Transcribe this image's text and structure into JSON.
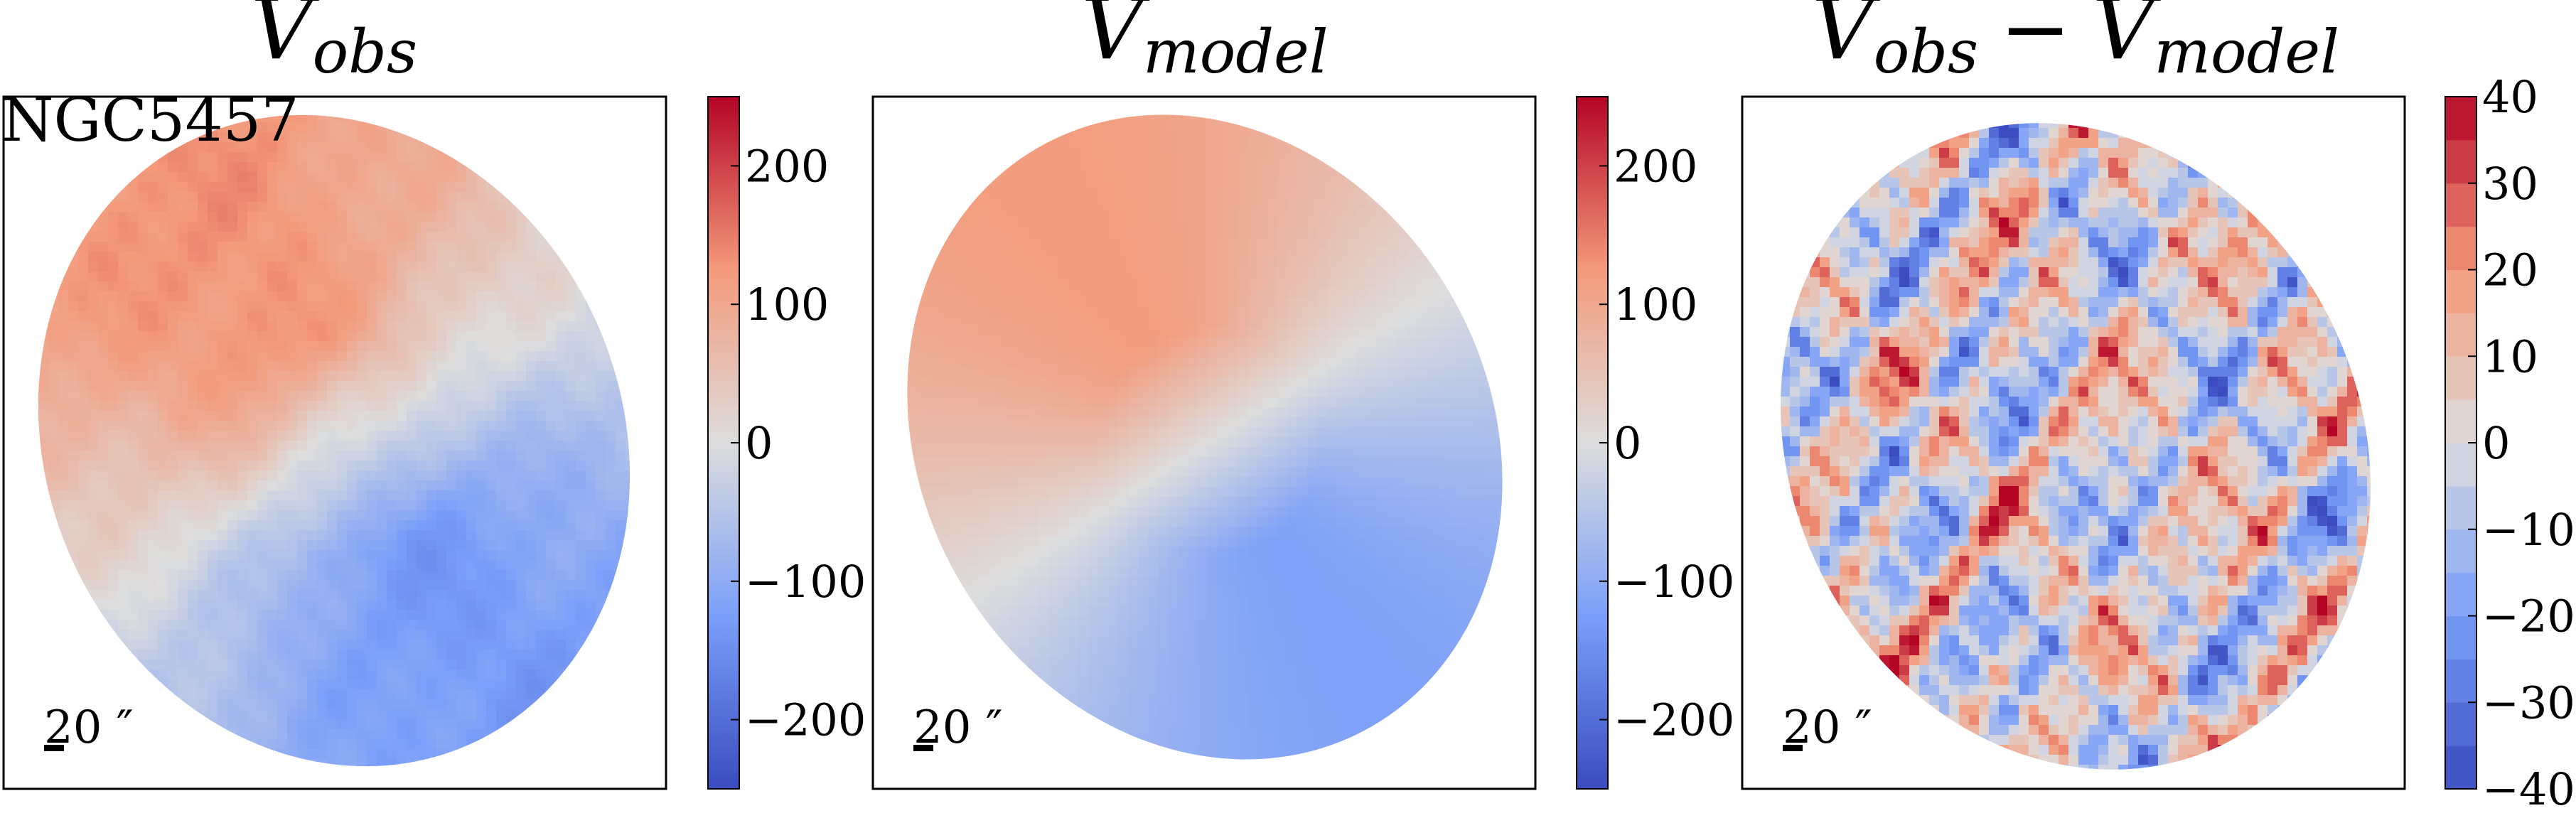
{
  "galaxy_label": "NGC5457",
  "scalebar_label": "20 ″",
  "colors": {
    "neg_extreme": "#3a4cc0",
    "neg": "#7b9ff9",
    "neutral": "#dddddd",
    "pos": "#f49a7b",
    "pos_extreme": "#b40426"
  },
  "chart_data": [
    {
      "type": "heatmap",
      "title_main": "V",
      "title_sub": "obs",
      "colorbar": {
        "range": [
          -250,
          250
        ],
        "ticks": [
          -200,
          -100,
          0,
          100,
          200
        ],
        "tick_labels": [
          "−200",
          "−100",
          "0",
          "100",
          "200"
        ],
        "discrete": false
      },
      "field": {
        "kinematic_angle_deg": 57,
        "amplitude": 130,
        "noise": 12
      }
    },
    {
      "type": "heatmap",
      "title_main": "V",
      "title_sub": "model",
      "colorbar": {
        "range": [
          -250,
          250
        ],
        "ticks": [
          -200,
          -100,
          0,
          100,
          200
        ],
        "tick_labels": [
          "−200",
          "−100",
          "0",
          "100",
          "200"
        ],
        "discrete": false
      },
      "field": {
        "kinematic_angle_deg": 57,
        "amplitude": 120,
        "noise": 0
      }
    },
    {
      "type": "heatmap",
      "title_main": "V",
      "title_sub": "obs",
      "title_minus": "−",
      "title_main2": "V",
      "title_sub2": "model",
      "colorbar": {
        "range": [
          -40,
          40
        ],
        "ticks": [
          -40,
          -30,
          -20,
          -10,
          0,
          10,
          20,
          30,
          40
        ],
        "tick_labels": [
          "−40",
          "−30",
          "−20",
          "−10",
          "0",
          "10",
          "20",
          "30",
          "40"
        ],
        "discrete": true,
        "levels": 16
      },
      "field": {
        "residual_amplitude": 25
      }
    }
  ]
}
